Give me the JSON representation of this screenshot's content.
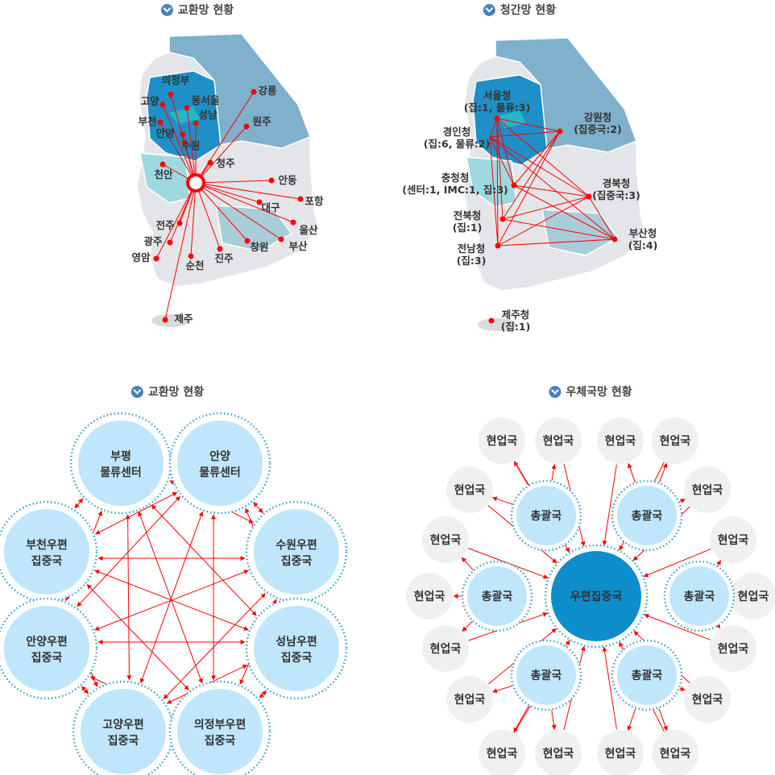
{
  "titles": {
    "top_left": "교환망 현황",
    "top_right": "청간망 현황",
    "bottom_left": "교환망 현황",
    "bottom_right": "우체국망 현황"
  },
  "colors": {
    "line": "#ff0000",
    "seoul_region": "#1f8fc7",
    "gangwon_region": "#7fb0cc",
    "chungnam_region": "#9fd9e0",
    "gyeongnam_region": "#a9cdd8",
    "land": "#e3e5e8",
    "node_fill": "#bfe6fb",
    "center_fill": "#0e8dcb",
    "ring": "#3a9fd0",
    "leaf_fill": "#f0f0f0"
  },
  "exchange_map": {
    "hub": "hub",
    "cities": [
      "의정부",
      "고양",
      "동서울",
      "부천",
      "성남",
      "안양",
      "수원",
      "강릉",
      "원주",
      "청주",
      "천안",
      "안동",
      "포항",
      "대구",
      "울산",
      "부산",
      "창원",
      "진주",
      "순천",
      "영암",
      "광주",
      "전주",
      "제주"
    ]
  },
  "regional_map": {
    "offices": [
      {
        "name": "서울청",
        "detail": "(집:1, 물류:3)"
      },
      {
        "name": "강원청",
        "detail": "(집중국:2)"
      },
      {
        "name": "경인청",
        "detail": "(집:6, 물류:2)"
      },
      {
        "name": "충청청",
        "detail": "(센터:1, IMC:1, 집:3)"
      },
      {
        "name": "경북청",
        "detail": "(집중국:3)"
      },
      {
        "name": "전북청",
        "detail": "(집:1)"
      },
      {
        "name": "전남청",
        "detail": "(집:3)"
      },
      {
        "name": "부산청",
        "detail": "(집:4)"
      },
      {
        "name": "제주청",
        "detail": "(집:1)"
      }
    ]
  },
  "exchange_network": {
    "nodes": [
      [
        "부평",
        "물류센터"
      ],
      [
        "안양",
        "물류센터"
      ],
      [
        "부천우편",
        "집중국"
      ],
      [
        "수원우편",
        "집중국"
      ],
      [
        "안양우편",
        "집중국"
      ],
      [
        "성남우편",
        "집중국"
      ],
      [
        "고양우편",
        "집중국"
      ],
      [
        "의정부우편",
        "집중국"
      ]
    ]
  },
  "post_network": {
    "center": "우편집중국",
    "hub_label": "총괄국",
    "leaf_label": "현업국"
  }
}
